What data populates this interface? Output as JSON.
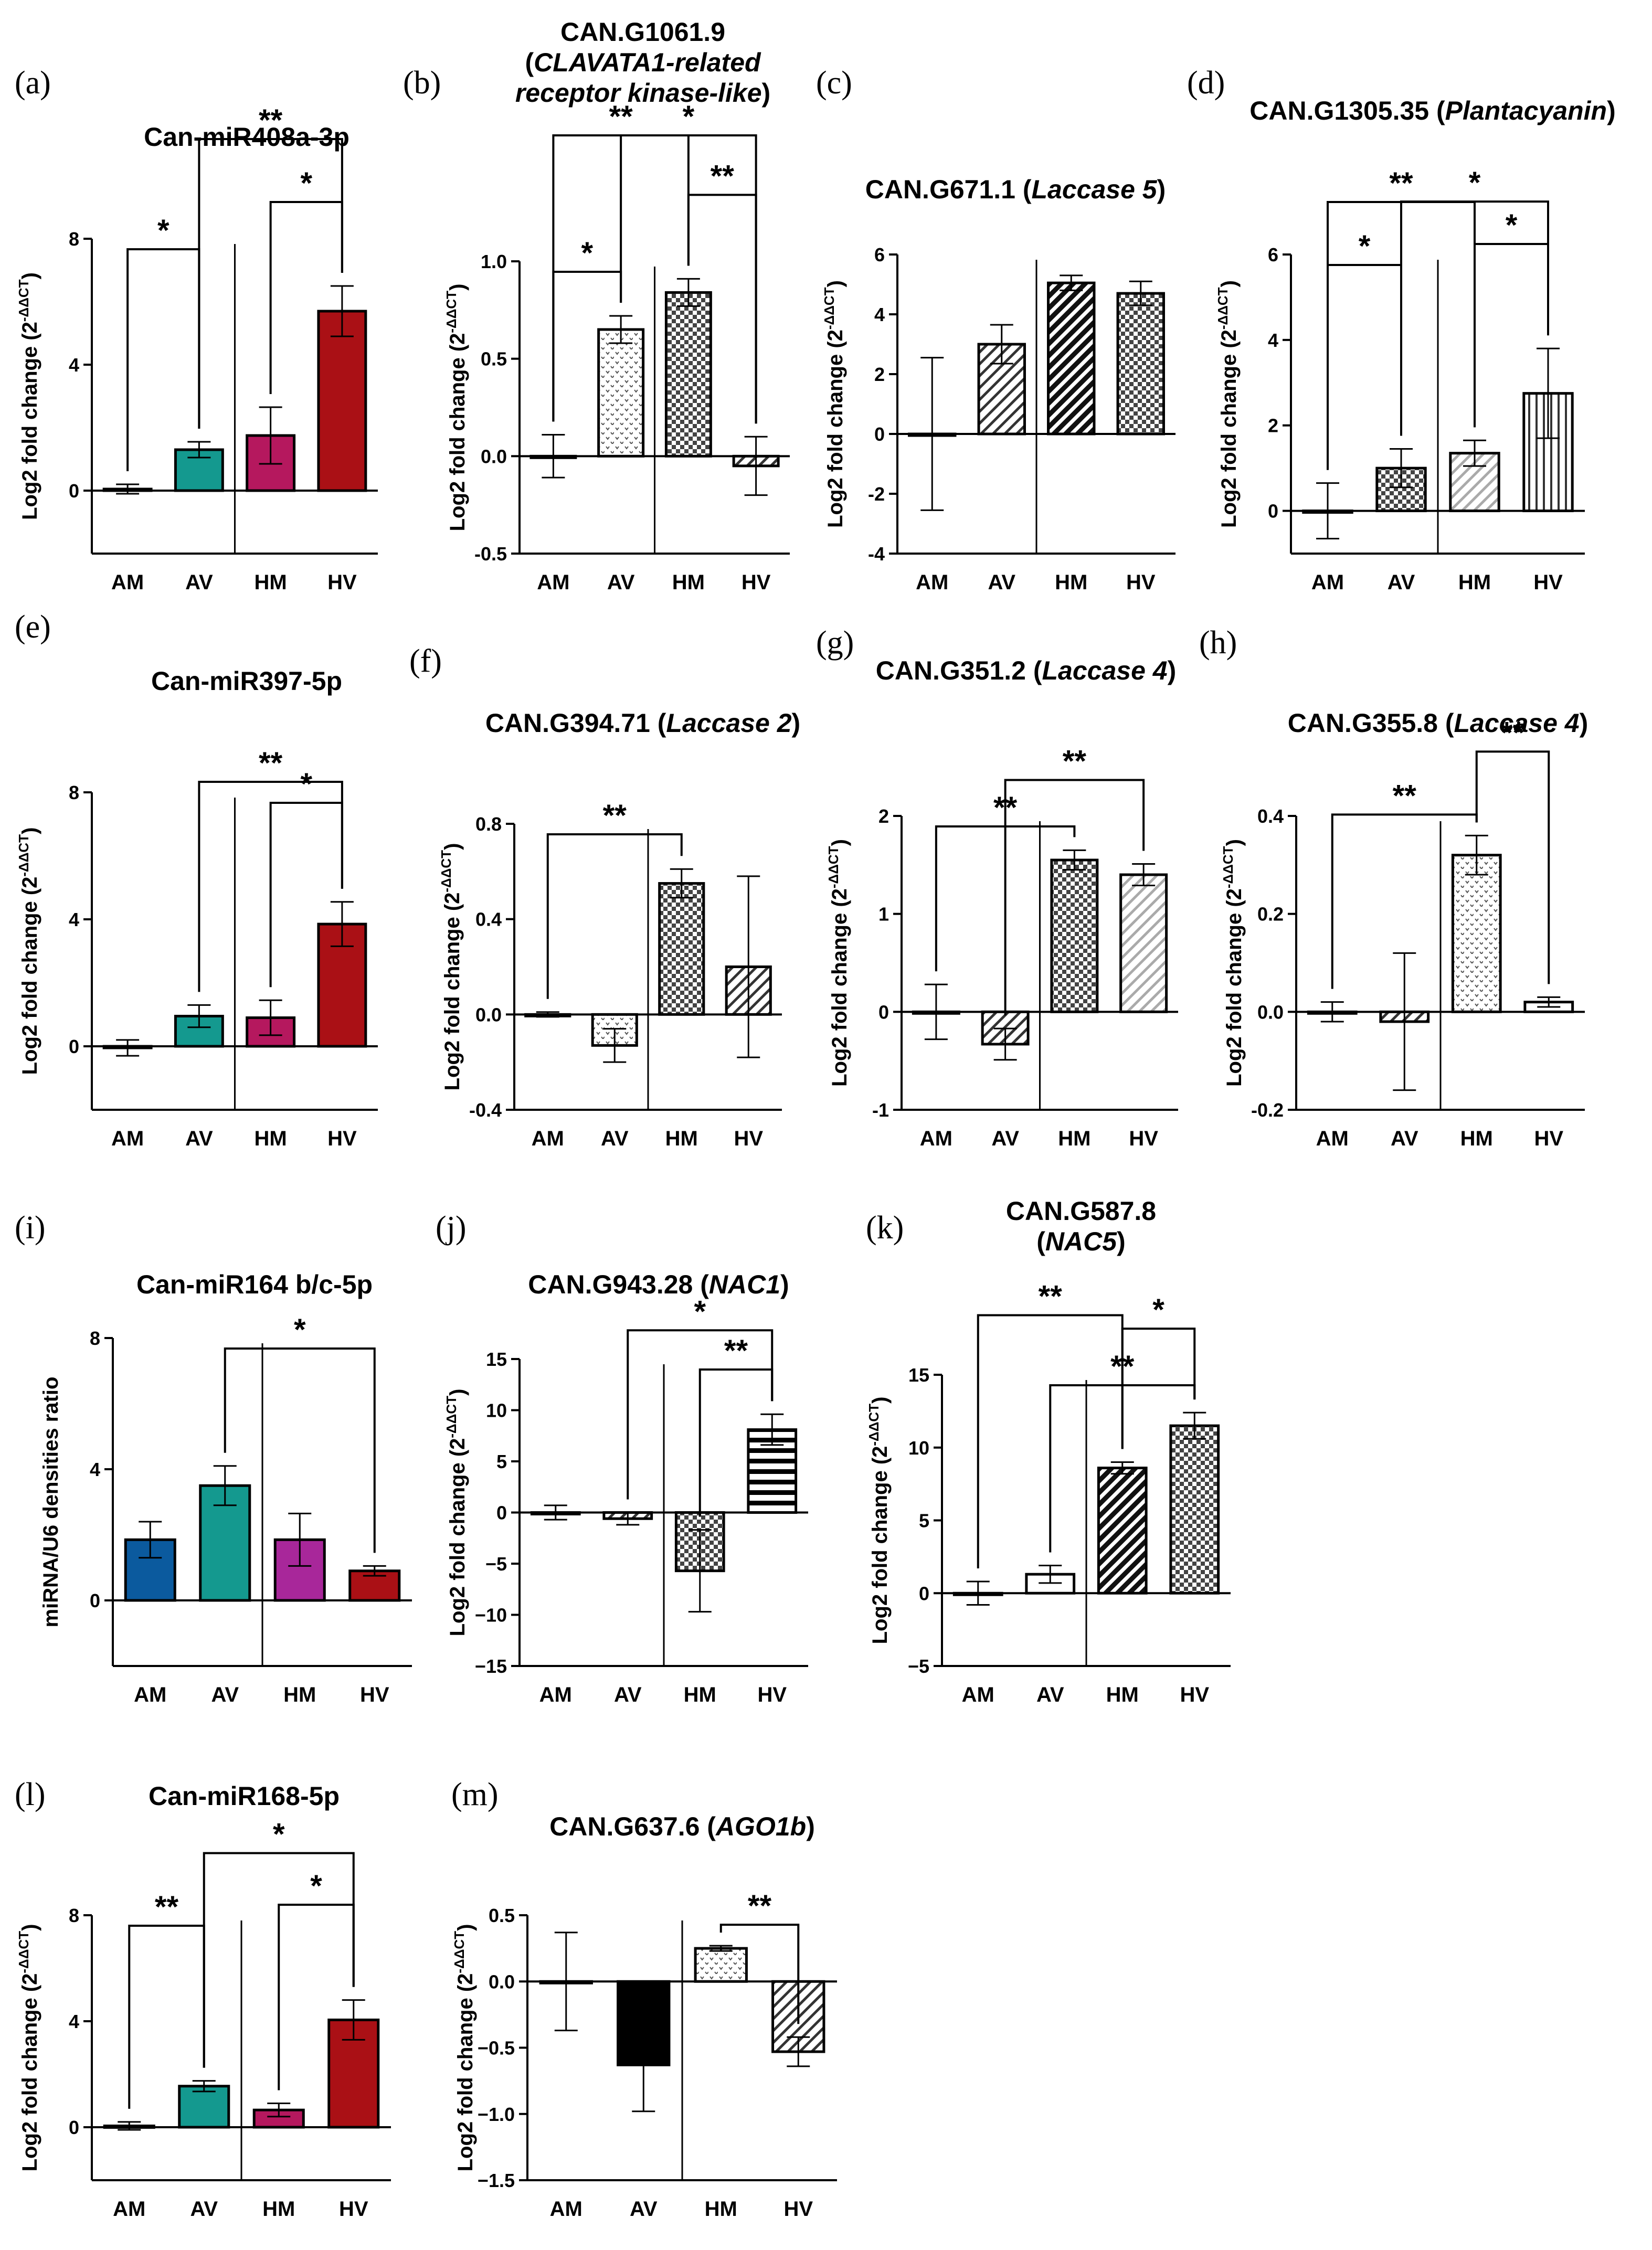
{
  "figure": {
    "description_y": "Log2 fold change (2-ΔΔCT)",
    "categories": [
      "AM",
      "AV",
      "HM",
      "HV"
    ]
  },
  "chart_data": [
    {
      "id": "a",
      "letter": "(a)",
      "type": "bar",
      "title": [
        "Can-miR408a-3p"
      ],
      "ylabel": "Log2 fold change (2-ΔΔCT)",
      "categories": [
        "AM",
        "AV",
        "HM",
        "HV"
      ],
      "values": [
        0.05,
        1.3,
        1.75,
        5.7
      ],
      "errors": [
        0.15,
        0.25,
        0.9,
        0.8
      ],
      "ylim": [
        -2,
        8
      ],
      "yticks": [
        0,
        4,
        8
      ],
      "ytick_labels": [
        "0",
        "4",
        "8"
      ],
      "fills": [
        "#ffffff",
        "#14998f",
        "#b5185e",
        "#aa1015"
      ],
      "patterns": [
        "none",
        "none",
        "none",
        "none"
      ],
      "sig": [
        {
          "from": 0,
          "to": 1,
          "label": "*"
        },
        {
          "from": 2,
          "to": 3,
          "label": "*"
        },
        {
          "from": 1,
          "to": 3,
          "label": "**"
        }
      ]
    },
    {
      "id": "b",
      "letter": "(b)",
      "type": "bar",
      "title": [
        "CAN.G1061.9",
        "(CLAVATA1-related",
        "receptor kinase-like)"
      ],
      "ylabel": "Log2 fold change (2-ΔΔCT)",
      "categories": [
        "AM",
        "AV",
        "HM",
        "HV"
      ],
      "values": [
        0.0,
        0.65,
        0.84,
        -0.05
      ],
      "errors": [
        0.11,
        0.07,
        0.07,
        0.15
      ],
      "ylim": [
        -0.5,
        1.0
      ],
      "yticks": [
        -0.5,
        0.0,
        0.5,
        1.0
      ],
      "ytick_labels": [
        "-0.5",
        "0.0",
        "0.5",
        "1.0"
      ],
      "fills": [
        "#ffffff",
        "#ffffff",
        "#ffffff",
        "#ffffff"
      ],
      "patterns": [
        "none",
        "dots",
        "checker",
        "hatch"
      ],
      "sig": [
        {
          "from": 0,
          "to": 1,
          "label": "*"
        },
        {
          "from": 2,
          "to": 3,
          "label": "**"
        },
        {
          "from": 0,
          "to": 2,
          "label": "**"
        },
        {
          "from": 1,
          "to": 3,
          "label": "*"
        }
      ]
    },
    {
      "id": "c",
      "letter": "(c)",
      "type": "bar",
      "title": [
        "CAN.G671.1 (Laccase 5)"
      ],
      "ylabel": "Log2 fold change (2-ΔΔCT)",
      "categories": [
        "AM",
        "AV",
        "HM",
        "HV"
      ],
      "values": [
        0.0,
        3.0,
        5.05,
        4.7
      ],
      "errors": [
        2.55,
        0.65,
        0.25,
        0.4
      ],
      "ylim": [
        -4,
        6
      ],
      "yticks": [
        -4,
        -2,
        0,
        2,
        4,
        6
      ],
      "ytick_labels": [
        "-4",
        "-2",
        "0",
        "2",
        "4",
        "6"
      ],
      "fills": [
        "#ffffff",
        "#ffffff",
        "#ffffff",
        "#ffffff"
      ],
      "patterns": [
        "none",
        "hatch",
        "hatch-dark",
        "checker"
      ],
      "sig": []
    },
    {
      "id": "d",
      "letter": "(d)",
      "type": "bar",
      "title": [
        "CAN.G1305.35 (Plantacyanin)"
      ],
      "ylabel": "Log2 fold change (2-ΔΔCT)",
      "categories": [
        "AM",
        "AV",
        "HM",
        "HV"
      ],
      "values": [
        0.0,
        1.0,
        1.35,
        2.75
      ],
      "errors": [
        0.65,
        0.45,
        0.3,
        1.05
      ],
      "ylim": [
        -1,
        6
      ],
      "yticks": [
        0,
        2,
        4,
        6
      ],
      "ytick_labels": [
        "0",
        "2",
        "4",
        "6"
      ],
      "fills": [
        "#ffffff",
        "#ffffff",
        "#ffffff",
        "#ffffff"
      ],
      "patterns": [
        "none",
        "checker",
        "hatch-light",
        "vlines"
      ],
      "sig": [
        {
          "from": 0,
          "to": 1,
          "label": "*"
        },
        {
          "from": 2,
          "to": 3,
          "label": "*"
        },
        {
          "from": 1,
          "to": 3,
          "label": "*"
        },
        {
          "from": 0,
          "to": 2,
          "label": "**"
        }
      ]
    },
    {
      "id": "e",
      "letter": "(e)",
      "type": "bar",
      "title": [
        "Can-miR397-5p"
      ],
      "ylabel": "Log2 fold change (2-ΔΔCT)",
      "categories": [
        "AM",
        "AV",
        "HM",
        "HV"
      ],
      "values": [
        -0.05,
        0.95,
        0.9,
        3.85
      ],
      "errors": [
        0.25,
        0.35,
        0.55,
        0.7
      ],
      "ylim": [
        -2,
        8
      ],
      "yticks": [
        0,
        4,
        8
      ],
      "ytick_labels": [
        "0",
        "4",
        "8"
      ],
      "fills": [
        "#ffffff",
        "#14998f",
        "#b5185e",
        "#aa1015"
      ],
      "patterns": [
        "none",
        "none",
        "none",
        "none"
      ],
      "sig": [
        {
          "from": 2,
          "to": 3,
          "label": "*"
        },
        {
          "from": 1,
          "to": 3,
          "label": "**"
        }
      ]
    },
    {
      "id": "f",
      "letter": "(f)",
      "type": "bar",
      "title": [
        "CAN.G394.71 (Laccase 2)"
      ],
      "ylabel": "Log2 fold change (2-ΔΔCT)",
      "categories": [
        "AM",
        "AV",
        "HM",
        "HV"
      ],
      "values": [
        0.0,
        -0.13,
        0.55,
        0.2
      ],
      "errors": [
        0.01,
        0.07,
        0.06,
        0.38
      ],
      "ylim": [
        -0.4,
        0.8
      ],
      "yticks": [
        -0.4,
        0.0,
        0.4,
        0.8
      ],
      "ytick_labels": [
        "-0.4",
        "0.0",
        "0.4",
        "0.8"
      ],
      "fills": [
        "#ffffff",
        "#ffffff",
        "#ffffff",
        "#ffffff"
      ],
      "patterns": [
        "none",
        "dots",
        "checker",
        "hatch"
      ],
      "sig": [
        {
          "from": 0,
          "to": 2,
          "label": "**"
        }
      ]
    },
    {
      "id": "g",
      "letter": "(g)",
      "type": "bar",
      "title": [
        "CAN.G351.2 (Laccase 4)"
      ],
      "ylabel": "Log2 fold change (2-ΔΔCT)",
      "categories": [
        "AM",
        "AV",
        "HM",
        "HV"
      ],
      "values": [
        0.0,
        -0.33,
        1.55,
        1.4
      ],
      "errors": [
        0.28,
        0.16,
        0.1,
        0.11
      ],
      "ylim": [
        -1,
        2
      ],
      "yticks": [
        -1,
        0,
        1,
        2
      ],
      "ytick_labels": [
        "-1",
        "0",
        "1",
        "2"
      ],
      "fills": [
        "#ffffff",
        "#ffffff",
        "#ffffff",
        "#ffffff"
      ],
      "patterns": [
        "none",
        "hatch",
        "checker",
        "hatch-light"
      ],
      "sig": [
        {
          "from": 0,
          "to": 2,
          "label": "**"
        },
        {
          "from": 1,
          "to": 3,
          "label": "**"
        }
      ]
    },
    {
      "id": "h",
      "letter": "(h)",
      "type": "bar",
      "title": [
        "CAN.G355.8 (Laccase 4)"
      ],
      "ylabel": "Log2 fold change (2-ΔΔCT)",
      "categories": [
        "AM",
        "AV",
        "HM",
        "HV"
      ],
      "values": [
        0.0,
        -0.02,
        0.32,
        0.02
      ],
      "errors": [
        0.02,
        0.14,
        0.04,
        0.01
      ],
      "ylim": [
        -0.2,
        0.4
      ],
      "yticks": [
        -0.2,
        0.0,
        0.2,
        0.4
      ],
      "ytick_labels": [
        "-0.2",
        "0.0",
        "0.2",
        "0.4"
      ],
      "fills": [
        "#ffffff",
        "#ffffff",
        "#ffffff",
        "#ffffff"
      ],
      "patterns": [
        "none",
        "hatch",
        "dots",
        "none"
      ],
      "sig": [
        {
          "from": 0,
          "to": 2,
          "label": "**"
        },
        {
          "from": 2,
          "to": 3,
          "label": "**"
        }
      ]
    },
    {
      "id": "i",
      "letter": "(i)",
      "type": "bar",
      "title": [
        "Can-miR164 b/c-5p"
      ],
      "ylabel": "miRNA/U6 densities ratio",
      "categories": [
        "AM",
        "AV",
        "HM",
        "HV"
      ],
      "values": [
        1.85,
        3.5,
        1.85,
        0.9
      ],
      "errors": [
        0.55,
        0.6,
        0.8,
        0.15
      ],
      "ylim": [
        -2,
        8
      ],
      "yticks": [
        0,
        4,
        8
      ],
      "ytick_labels": [
        "0",
        "4",
        "8"
      ],
      "fills": [
        "#0b5a9e",
        "#14998f",
        "#a8279a",
        "#aa1015"
      ],
      "patterns": [
        "none",
        "none",
        "none",
        "none"
      ],
      "sig": [
        {
          "from": 1,
          "to": 3,
          "label": "*"
        }
      ]
    },
    {
      "id": "j",
      "letter": "(j)",
      "type": "bar",
      "title": [
        "CAN.G943.28 (NAC1)"
      ],
      "ylabel": "Log2 fold change (2-ΔΔCT)",
      "categories": [
        "AM",
        "AV",
        "HM",
        "HV"
      ],
      "values": [
        0.0,
        -0.6,
        -5.7,
        8.1
      ],
      "errors": [
        0.7,
        0.6,
        4.0,
        1.5
      ],
      "ylim": [
        -15,
        15
      ],
      "yticks": [
        -15,
        -10,
        -5,
        0,
        5,
        10,
        15
      ],
      "ytick_labels": [
        "−15",
        "−10",
        "−5",
        "0",
        "5",
        "10",
        "15"
      ],
      "fills": [
        "#ffffff",
        "#ffffff",
        "#ffffff",
        "#ffffff"
      ],
      "patterns": [
        "none",
        "hatch",
        "checker",
        "hlines"
      ],
      "sig": [
        {
          "from": 2,
          "to": 3,
          "label": "**"
        },
        {
          "from": 1,
          "to": 3,
          "label": "*"
        }
      ]
    },
    {
      "id": "k",
      "letter": "(k)",
      "type": "bar",
      "title": [
        "CAN.G587.8",
        "(NAC5)"
      ],
      "ylabel": "Log2 fold change (2-ΔΔCT)",
      "categories": [
        "AM",
        "AV",
        "HM",
        "HV"
      ],
      "values": [
        0.0,
        1.3,
        8.6,
        11.5
      ],
      "errors": [
        0.8,
        0.6,
        0.4,
        0.9
      ],
      "ylim": [
        -5,
        15
      ],
      "yticks": [
        -5,
        0,
        5,
        10,
        15
      ],
      "ytick_labels": [
        "−5",
        "0",
        "5",
        "10",
        "15"
      ],
      "fills": [
        "#ffffff",
        "#ffffff",
        "#ffffff",
        "#ffffff"
      ],
      "patterns": [
        "none",
        "none",
        "hatch-dark",
        "checker"
      ],
      "sig": [
        {
          "from": 1,
          "to": 3,
          "label": "**"
        },
        {
          "from": 2,
          "to": 3,
          "label": "*"
        },
        {
          "from": 0,
          "to": 2,
          "label": "**"
        }
      ]
    },
    {
      "id": "l",
      "letter": "(l)",
      "type": "bar",
      "title": [
        "Can-miR168-5p"
      ],
      "ylabel": "Log2 fold change (2-ΔΔCT)",
      "categories": [
        "AM",
        "AV",
        "HM",
        "HV"
      ],
      "values": [
        0.05,
        1.55,
        0.65,
        4.05
      ],
      "errors": [
        0.15,
        0.2,
        0.25,
        0.75
      ],
      "ylim": [
        -2,
        8
      ],
      "yticks": [
        0,
        4,
        8
      ],
      "ytick_labels": [
        "0",
        "4",
        "8"
      ],
      "fills": [
        "#ffffff",
        "#14998f",
        "#b5185e",
        "#aa1015"
      ],
      "patterns": [
        "none",
        "none",
        "none",
        "none"
      ],
      "sig": [
        {
          "from": 0,
          "to": 1,
          "label": "**"
        },
        {
          "from": 2,
          "to": 3,
          "label": "*"
        },
        {
          "from": 1,
          "to": 3,
          "label": "*"
        }
      ]
    },
    {
      "id": "m",
      "letter": "(m)",
      "type": "bar",
      "title": [
        "CAN.G637.6 (AGO1b)"
      ],
      "ylabel": "Log2 fold change (2-ΔΔCT)",
      "categories": [
        "AM",
        "AV",
        "HM",
        "HV"
      ],
      "values": [
        0.0,
        -0.63,
        0.25,
        -0.53
      ],
      "errors": [
        0.37,
        0.35,
        0.02,
        0.11
      ],
      "ylim": [
        -1.5,
        0.5
      ],
      "yticks": [
        -1.5,
        -1.0,
        -0.5,
        0.0,
        0.5
      ],
      "ytick_labels": [
        "−1.5",
        "−1.0",
        "−0.5",
        "0.0",
        "0.5"
      ],
      "fills": [
        "#ffffff",
        "#000000",
        "#ffffff",
        "#ffffff"
      ],
      "patterns": [
        "none",
        "none",
        "dots",
        "hatch"
      ],
      "sig": [
        {
          "from": 2,
          "to": 3,
          "label": "**"
        }
      ]
    }
  ]
}
